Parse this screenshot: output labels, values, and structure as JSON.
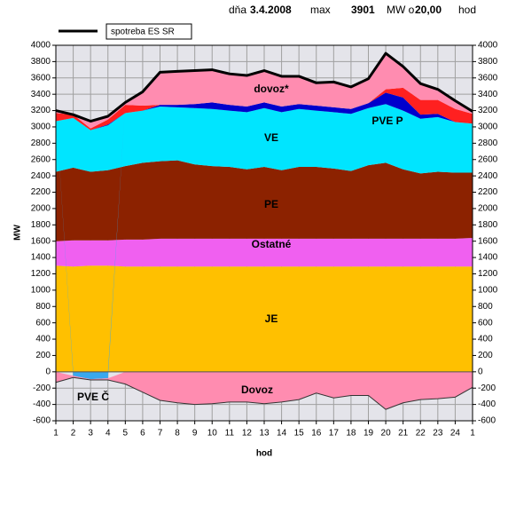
{
  "header": {
    "day_label": "dňa",
    "date": "3.4.2008",
    "max_label": "max",
    "max": "3901",
    "unit_label": "MW o",
    "time": "20,00",
    "hour_label": "hod"
  },
  "chart_data": {
    "type": "area",
    "categories": [
      "1",
      "2",
      "3",
      "4",
      "5",
      "6",
      "7",
      "8",
      "9",
      "10",
      "11",
      "12",
      "13",
      "14",
      "15",
      "16",
      "17",
      "18",
      "19",
      "20",
      "21",
      "22",
      "23",
      "24",
      "1"
    ],
    "ylabel": "MW",
    "xlabel": "hod",
    "ylim": [
      -600,
      4000
    ],
    "yticks": [
      -600,
      -400,
      -200,
      0,
      200,
      400,
      600,
      800,
      1000,
      1200,
      1400,
      1600,
      1800,
      2000,
      2200,
      2400,
      2600,
      2800,
      3000,
      3200,
      3400,
      3600,
      3800,
      4000
    ],
    "y2lim": [
      -600,
      4000
    ],
    "y2ticks": [
      -600,
      -400,
      -200,
      0,
      200,
      400,
      600,
      800,
      1000,
      1200,
      1400,
      1600,
      1800,
      2000,
      2200,
      2400,
      2600,
      2800,
      3000,
      3200,
      3400,
      3600,
      3800,
      4000
    ],
    "grid": true,
    "series": [
      {
        "name": "JE",
        "color": "#ffc000",
        "values": [
          1300,
          1290,
          1300,
          1300,
          1290,
          1290,
          1290,
          1290,
          1290,
          1290,
          1290,
          1290,
          1290,
          1290,
          1290,
          1290,
          1290,
          1290,
          1290,
          1290,
          1290,
          1290,
          1290,
          1290,
          1290
        ]
      },
      {
        "name": "Ostatné",
        "color": "#f060f0",
        "values": [
          300,
          320,
          310,
          310,
          330,
          330,
          340,
          340,
          340,
          340,
          340,
          340,
          340,
          340,
          340,
          340,
          340,
          340,
          340,
          340,
          340,
          340,
          340,
          340,
          350
        ]
      },
      {
        "name": "PE",
        "color": "#8c2200",
        "values": [
          850,
          890,
          840,
          860,
          900,
          940,
          950,
          960,
          910,
          890,
          880,
          850,
          880,
          840,
          880,
          880,
          860,
          830,
          900,
          930,
          850,
          800,
          820,
          810,
          800
        ]
      },
      {
        "name": "VE",
        "color": "#00e5ff",
        "values": [
          620,
          610,
          510,
          550,
          650,
          640,
          670,
          650,
          690,
          700,
          690,
          700,
          720,
          710,
          710,
          690,
          690,
          700,
          700,
          720,
          720,
          670,
          670,
          620,
          600
        ]
      },
      {
        "name": "PVE P",
        "color": "#0000cc",
        "values": [
          0,
          0,
          0,
          10,
          0,
          0,
          20,
          30,
          50,
          80,
          70,
          70,
          70,
          70,
          60,
          60,
          60,
          60,
          60,
          140,
          160,
          50,
          40,
          0,
          0
        ]
      },
      {
        "color": "#ff2020",
        "values": [
          100,
          40,
          20,
          60,
          100,
          60,
          0,
          0,
          0,
          0,
          0,
          0,
          0,
          0,
          0,
          0,
          0,
          0,
          0,
          40,
          120,
          180,
          170,
          160,
          120
        ]
      },
      {
        "name": "dovoz*",
        "color": "#ff8cb0",
        "values": [
          30,
          0,
          90,
          40,
          30,
          170,
          400,
          410,
          410,
          400,
          380,
          380,
          390,
          370,
          340,
          280,
          310,
          270,
          300,
          441,
          260,
          200,
          130,
          100,
          30
        ]
      },
      {
        "name": "PVE Č",
        "color": "#3aa8ee",
        "values": [
          0,
          -50,
          -90,
          -80,
          0,
          0,
          0,
          0,
          0,
          0,
          0,
          0,
          0,
          0,
          0,
          0,
          0,
          0,
          0,
          0,
          0,
          0,
          0,
          0,
          0
        ]
      },
      {
        "name": "Dovoz",
        "color": "#ff8cb0",
        "values": [
          -130,
          -20,
          -10,
          -20,
          -150,
          -250,
          -350,
          -380,
          -400,
          -390,
          -370,
          -370,
          -390,
          -370,
          -340,
          -260,
          -320,
          -290,
          -290,
          -460,
          -380,
          -340,
          -330,
          -310,
          -190
        ]
      }
    ],
    "line": {
      "name": "spotreba ES SR",
      "color": "#000000",
      "values": [
        3200,
        3150,
        3070,
        3130,
        3300,
        3430,
        3670,
        3680,
        3690,
        3700,
        3650,
        3630,
        3690,
        3620,
        3620,
        3540,
        3550,
        3490,
        3590,
        3901,
        3740,
        3530,
        3460,
        3320,
        3190
      ]
    }
  }
}
